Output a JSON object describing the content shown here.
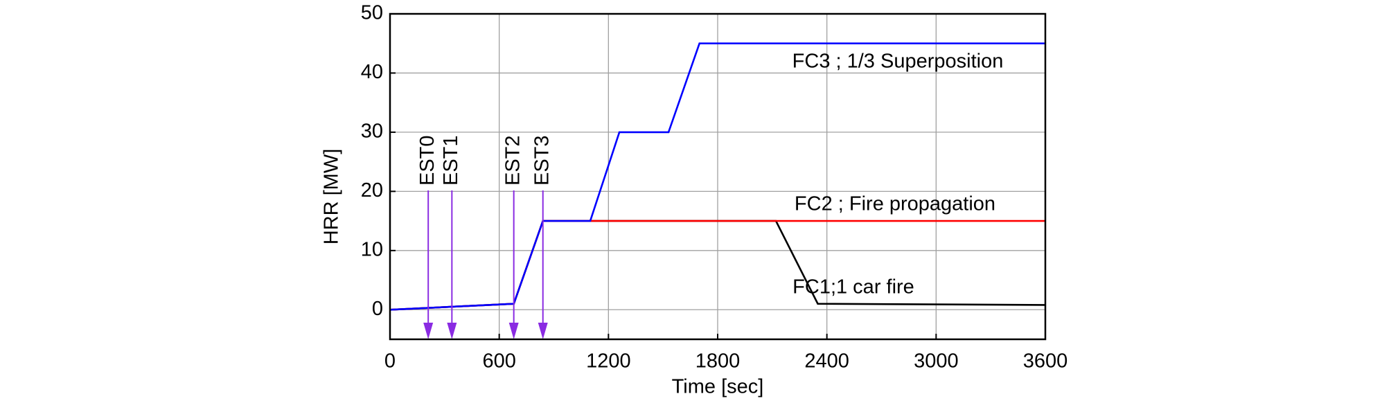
{
  "chart_data": {
    "type": "line",
    "xlabel": "Time [sec]",
    "ylabel": "HRR [MW]",
    "xlim": [
      0,
      3600
    ],
    "xticks": [
      0,
      600,
      1200,
      1800,
      2400,
      3000,
      3600
    ],
    "ylim": [
      -5,
      50
    ],
    "yticks": [
      0,
      10,
      20,
      30,
      40,
      50
    ],
    "grid": true,
    "series": [
      {
        "name": "FC1;1 car fire",
        "color": "#000000",
        "x": [
          0,
          680,
          840,
          2120,
          2350,
          3600
        ],
        "values": [
          0,
          1,
          15,
          15,
          1,
          0.8
        ]
      },
      {
        "name": "FC2 ; Fire propagation",
        "color": "#ff0000",
        "x": [
          0,
          680,
          840,
          3600
        ],
        "values": [
          0,
          1,
          15,
          15
        ]
      },
      {
        "name": "FC3 ; 1/3 Superposition",
        "color": "#0000ff",
        "x": [
          0,
          680,
          840,
          1100,
          1260,
          1530,
          1700,
          3600
        ],
        "values": [
          0,
          1,
          15,
          15,
          30,
          30,
          45,
          45
        ]
      }
    ],
    "markers": {
      "color": "#8a2be2",
      "labels": [
        "EST0",
        "EST1",
        "EST2",
        "EST3"
      ],
      "x": [
        210,
        340,
        680,
        840
      ]
    }
  }
}
